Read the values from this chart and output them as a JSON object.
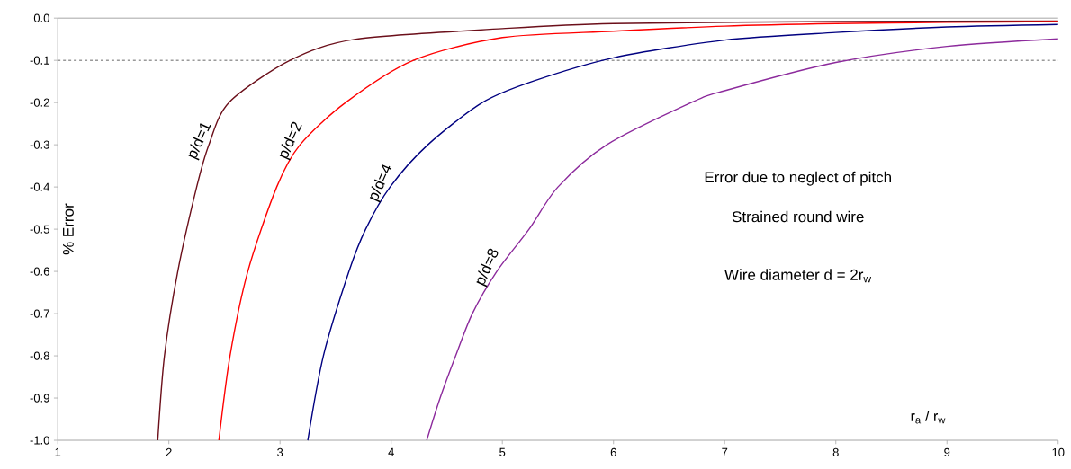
{
  "chart_data": {
    "type": "line",
    "xlabel": "r$_{a}$ / r$_{w}$",
    "ylabel": "% Error",
    "xlim": [
      1,
      10
    ],
    "xticks": [
      1,
      2,
      3,
      4,
      5,
      6,
      7,
      8,
      9,
      10
    ],
    "ylim": [
      -1.0,
      0.0
    ],
    "yticks": [
      {
        "value": 0.0,
        "label": "0.0"
      },
      -0.1,
      -0.2,
      -0.3,
      -0.4,
      -0.5,
      -0.6,
      -0.7,
      -0.8,
      -0.9,
      {
        "value": -1.0,
        "label": "-1.0"
      }
    ],
    "grid": false,
    "legend": false,
    "marker": "none",
    "line_style": "solid",
    "series": [
      {
        "name": "p/d=1",
        "color": "#6b0f1a",
        "x": [
          1.9,
          1.96,
          2.08,
          2.25,
          2.36,
          2.54,
          3.09,
          3.68,
          5,
          6,
          8,
          10
        ],
        "values": [
          -1.0,
          -0.8,
          -0.6,
          -0.4,
          -0.3,
          -0.2,
          -0.1,
          -0.05,
          -0.025,
          -0.013,
          -0.008,
          -0.007
        ]
      },
      {
        "name": "p/d=2",
        "color": "#ff0000",
        "x": [
          2.45,
          2.55,
          2.71,
          2.97,
          3.18,
          3.59,
          4.2,
          5,
          6,
          7,
          8,
          9,
          10
        ],
        "values": [
          -1.0,
          -0.8,
          -0.6,
          -0.4,
          -0.3,
          -0.2,
          -0.1,
          -0.046,
          -0.031,
          -0.019,
          -0.013,
          -0.01,
          -0.008
        ]
      },
      {
        "name": "p/d=4",
        "color": "#000080",
        "x": [
          3.25,
          3.39,
          3.62,
          3.77,
          3.99,
          4.33,
          4.82,
          5.27,
          6,
          7,
          8,
          9,
          10
        ],
        "values": [
          -1.0,
          -0.8,
          -0.6,
          -0.5,
          -0.4,
          -0.3,
          -0.2,
          -0.15,
          -0.094,
          -0.052,
          -0.034,
          -0.021,
          -0.015
        ]
      },
      {
        "name": "p/d=8",
        "color": "#8c2a9c",
        "x": [
          4.32,
          4.44,
          4.58,
          4.73,
          4.95,
          5.24,
          5.5,
          5.94,
          6.7,
          7,
          8,
          9,
          10
        ],
        "values": [
          -1.0,
          -0.9,
          -0.8,
          -0.7,
          -0.6,
          -0.5,
          -0.4,
          -0.3,
          -0.2,
          -0.172,
          -0.105,
          -0.067,
          -0.049
        ]
      }
    ],
    "ref_lines": [
      {
        "axis": "y",
        "value": -0.1,
        "color": "#404040",
        "line_style": "dashed"
      }
    ],
    "annotations": [
      "Error due to neglect of pitch",
      "Strained round wire",
      "Wire diameter  d = 2r$_{w}$"
    ]
  }
}
